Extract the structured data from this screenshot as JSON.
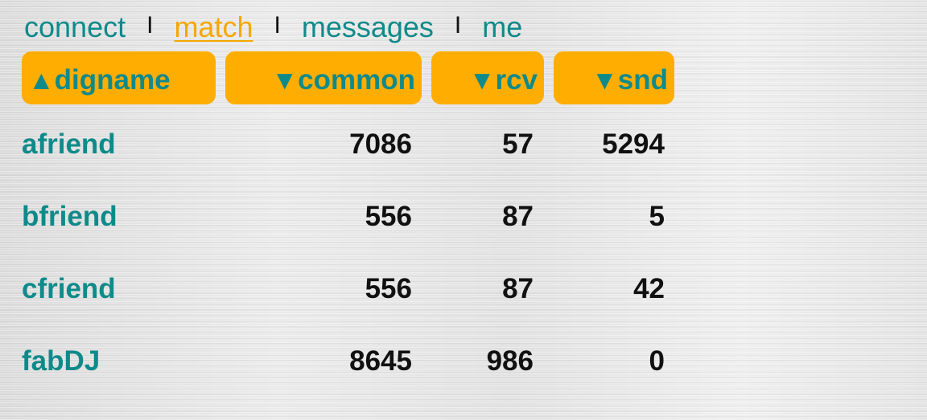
{
  "nav": {
    "items": [
      {
        "label": "connect",
        "active": false
      },
      {
        "label": "match",
        "active": true
      },
      {
        "label": "messages",
        "active": false
      },
      {
        "label": "me",
        "active": false
      }
    ],
    "separator": "I"
  },
  "table": {
    "headers": [
      {
        "label": "digname",
        "arrow": "▲",
        "sort": "ascending"
      },
      {
        "label": "common",
        "arrow": "▼",
        "sort": "descending"
      },
      {
        "label": "rcv",
        "arrow": "▼",
        "sort": "descending"
      },
      {
        "label": "snd",
        "arrow": "▼",
        "sort": "descending"
      }
    ],
    "rows": [
      {
        "digname": "afriend",
        "common": "7086",
        "rcv": "57",
        "snd": "5294"
      },
      {
        "digname": "bfriend",
        "common": "556",
        "rcv": "87",
        "snd": "5"
      },
      {
        "digname": "cfriend",
        "common": "556",
        "rcv": "87",
        "snd": "42"
      },
      {
        "digname": "fabDJ",
        "common": "8645",
        "rcv": "986",
        "snd": "0"
      }
    ]
  },
  "colors": {
    "accent": "#ffad00",
    "link": "#0f8a8a",
    "active_link": "#f5a800",
    "text": "#111111"
  }
}
